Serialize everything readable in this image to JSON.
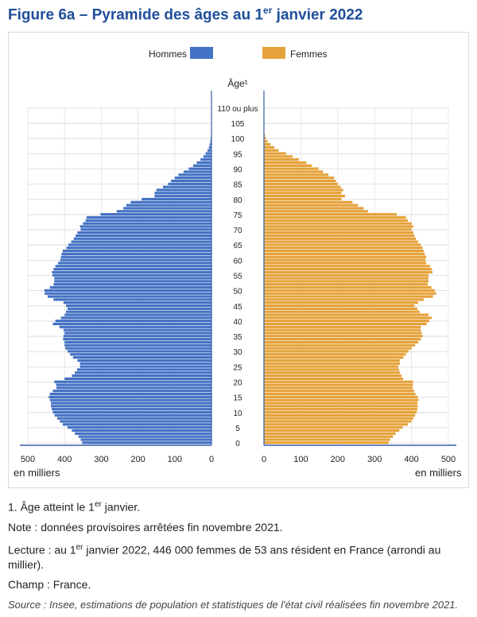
{
  "title": {
    "main": "Figure 6a – Pyramide des âges au 1",
    "sup": "er",
    "rest": " janvier 2022"
  },
  "legend": {
    "men": "Hommes",
    "women": "Femmes"
  },
  "colors": {
    "men": "#4472c4",
    "women": "#e5a23a"
  },
  "axis": {
    "age_label": "Âge¹",
    "unit_left": "en milliers",
    "unit_right": "en milliers",
    "top_label": "110 ou plus"
  },
  "notes": {
    "n1_a": "1. Âge atteint le 1",
    "n1_sup": "er",
    "n1_b": " janvier.",
    "n2": "Note : données provisoires arrêtées fin novembre 2021.",
    "n3_a": "Lecture : au 1",
    "n3_sup": "er",
    "n3_b": " janvier 2022, 446 000 femmes de 53 ans résident en France (arrondi au millier).",
    "n4": "Champ : France.",
    "source": "Source : Insee, estimations de population et statistiques de l'état civil réalisées fin novembre 2021."
  },
  "chart_data": {
    "type": "bar",
    "title": "Pyramide des âges au 1er janvier 2022",
    "orientation": "horizontal-pyramid",
    "xlabel": "en milliers",
    "ylabel": "Âge¹",
    "xlim": [
      0,
      500
    ],
    "x_ticks": [
      0,
      100,
      200,
      300,
      400,
      500
    ],
    "y_ticks": [
      0,
      5,
      10,
      15,
      20,
      25,
      30,
      35,
      40,
      45,
      50,
      55,
      60,
      65,
      70,
      75,
      80,
      85,
      90,
      95,
      100,
      105,
      "110 ou plus"
    ],
    "ages": [
      0,
      1,
      2,
      3,
      4,
      5,
      6,
      7,
      8,
      9,
      10,
      11,
      12,
      13,
      14,
      15,
      16,
      17,
      18,
      19,
      20,
      21,
      22,
      23,
      24,
      25,
      26,
      27,
      28,
      29,
      30,
      31,
      32,
      33,
      34,
      35,
      36,
      37,
      38,
      39,
      40,
      41,
      42,
      43,
      44,
      45,
      46,
      47,
      48,
      49,
      50,
      51,
      52,
      53,
      54,
      55,
      56,
      57,
      58,
      59,
      60,
      61,
      62,
      63,
      64,
      65,
      66,
      67,
      68,
      69,
      70,
      71,
      72,
      73,
      74,
      75,
      76,
      77,
      78,
      79,
      80,
      81,
      82,
      83,
      84,
      85,
      86,
      87,
      88,
      89,
      90,
      91,
      92,
      93,
      94,
      95,
      96,
      97,
      98,
      99,
      100,
      101,
      102,
      103,
      104,
      105,
      106,
      107,
      108,
      109,
      110
    ],
    "series": [
      {
        "name": "Hommes",
        "values": [
          352,
          356,
          362,
          372,
          380,
          392,
          405,
          413,
          420,
          427,
          432,
          435,
          437,
          437,
          440,
          443,
          440,
          432,
          422,
          423,
          428,
          400,
          380,
          372,
          366,
          358,
          358,
          365,
          377,
          385,
          392,
          398,
          400,
          400,
          404,
          403,
          400,
          403,
          414,
          432,
          425,
          410,
          400,
          396,
          392,
          396,
          403,
          430,
          446,
          454,
          455,
          440,
          430,
          428,
          428,
          433,
          434,
          430,
          425,
          418,
          412,
          410,
          408,
          405,
          395,
          390,
          382,
          375,
          370,
          365,
          356,
          358,
          350,
          343,
          340,
          302,
          258,
          240,
          232,
          220,
          190,
          155,
          155,
          150,
          132,
          118,
          110,
          100,
          90,
          76,
          62,
          50,
          40,
          30,
          22,
          16,
          11,
          7,
          5,
          3,
          2,
          1,
          1,
          0,
          0,
          0,
          0,
          0,
          0,
          0,
          1
        ]
      },
      {
        "name": "Femmes",
        "values": [
          338,
          342,
          350,
          357,
          367,
          376,
          390,
          400,
          405,
          410,
          414,
          416,
          417,
          416,
          419,
          417,
          411,
          407,
          403,
          404,
          404,
          377,
          373,
          369,
          366,
          364,
          369,
          368,
          378,
          385,
          392,
          400,
          410,
          418,
          425,
          430,
          428,
          425,
          425,
          441,
          448,
          455,
          446,
          422,
          416,
          408,
          418,
          433,
          458,
          467,
          463,
          454,
          444,
          446,
          446,
          446,
          457,
          455,
          450,
          440,
          438,
          440,
          436,
          433,
          430,
          425,
          418,
          412,
          408,
          405,
          400,
          405,
          400,
          390,
          385,
          360,
          282,
          270,
          255,
          240,
          210,
          220,
          210,
          215,
          208,
          200,
          195,
          190,
          175,
          160,
          148,
          130,
          115,
          95,
          78,
          60,
          40,
          28,
          18,
          10,
          5,
          3,
          1,
          1,
          0,
          0,
          0,
          0,
          0,
          0,
          1
        ]
      }
    ]
  }
}
